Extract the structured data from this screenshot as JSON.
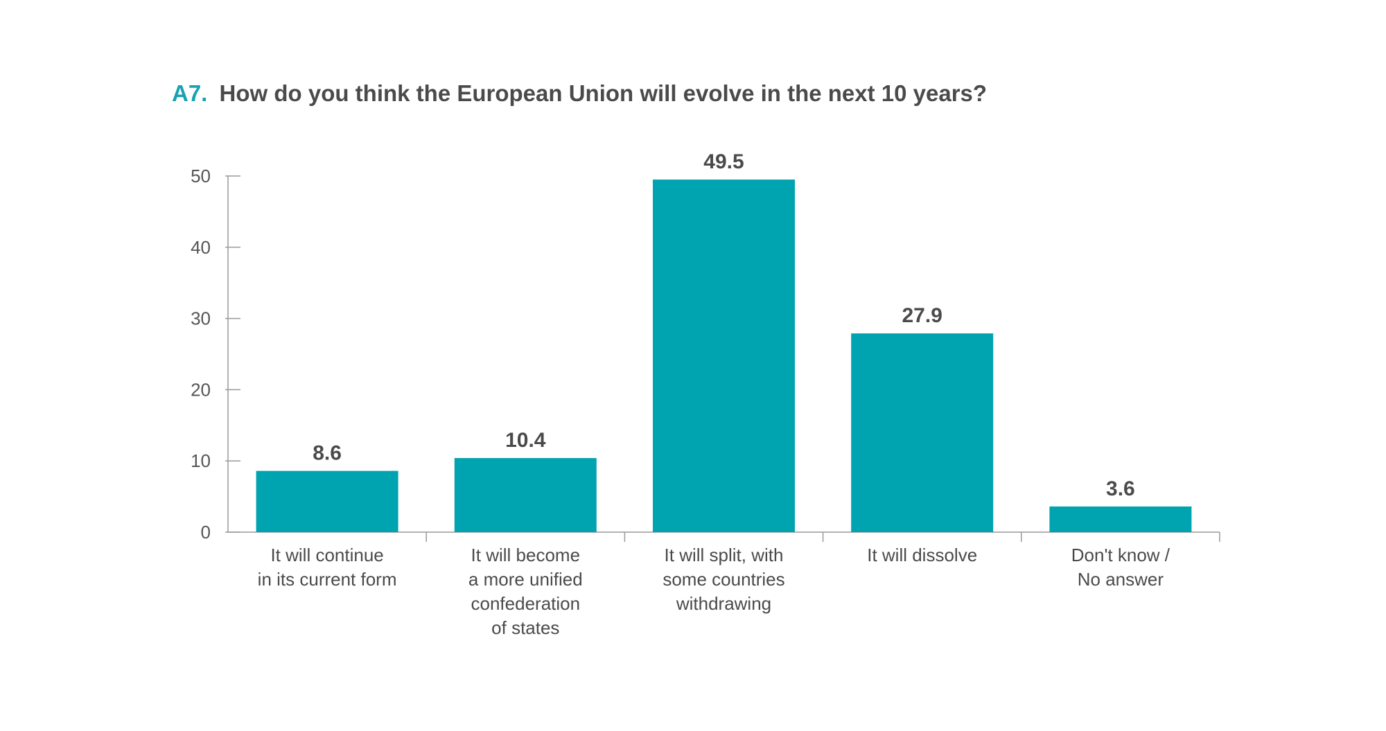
{
  "colors": {
    "bar": "#00A3B0",
    "title_prefix": "#17A2B3",
    "title": "#4A4A4A",
    "axis": "#999999",
    "text": "#4A4A4A"
  },
  "chart_data": {
    "type": "bar",
    "title_prefix": "A7.",
    "title": "How do you think the European Union will evolve in the next 10 years?",
    "xlabel": "",
    "ylabel": "",
    "ylim": [
      0,
      50
    ],
    "yticks": [
      0,
      10,
      20,
      30,
      40,
      50
    ],
    "grid": false,
    "categories": [
      [
        "It will continue",
        "in its current form"
      ],
      [
        "It will become",
        "a more unified",
        "confederation",
        "of states"
      ],
      [
        "It will split, with",
        "some countries",
        "withdrawing"
      ],
      [
        "It will dissolve"
      ],
      [
        "Don't know /",
        "No answer"
      ]
    ],
    "values": [
      8.6,
      10.4,
      49.5,
      27.9,
      3.6
    ],
    "value_labels": [
      "8.6",
      "10.4",
      "49.5",
      "27.9",
      "3.6"
    ]
  }
}
